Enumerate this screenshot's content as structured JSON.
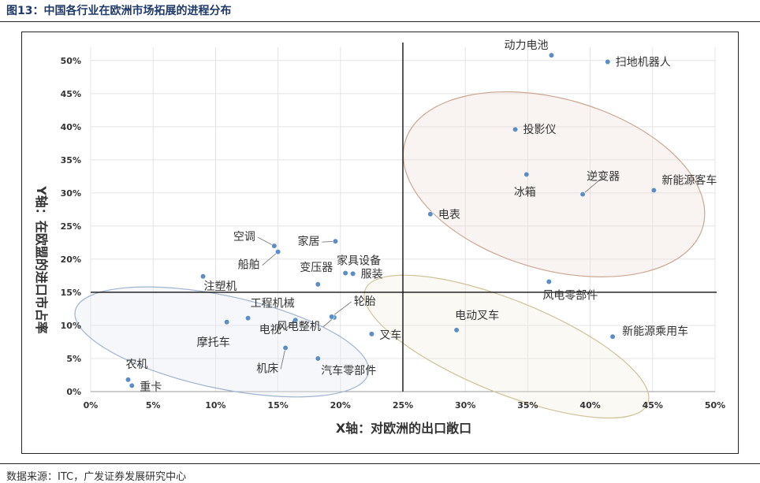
{
  "header": {
    "title": "图13：中国各行业在欧洲市场拓展的进程分布"
  },
  "footer": {
    "source": "数据来源：ITC，广发证券发展研究中心"
  },
  "colors": {
    "point": "#5b8ec7",
    "title": "#1f3a68",
    "ellipse_top_right": "#c9a793",
    "ellipse_bottom_left": "#9fb3cf",
    "ellipse_bottom_right": "#cfc29b"
  },
  "chart_data": {
    "type": "scatter",
    "title": "",
    "xlabel": "X轴：对欧洲的出口敞口",
    "ylabel": "Y轴：在欧盟的进口市占率",
    "xlim": [
      0,
      50
    ],
    "ylim": [
      0,
      52
    ],
    "x_ticks": [
      "0%",
      "5%",
      "10%",
      "15%",
      "20%",
      "25%",
      "30%",
      "35%",
      "40%",
      "45%",
      "50%"
    ],
    "y_ticks": [
      "0%",
      "5%",
      "10%",
      "15%",
      "20%",
      "25%",
      "30%",
      "35%",
      "40%",
      "45%",
      "50%"
    ],
    "x_divider": 25,
    "y_divider": 15,
    "grid": true,
    "points": [
      {
        "label": "动力电池",
        "x": 36.9,
        "y": 50.8
      },
      {
        "label": "扫地机器人",
        "x": 41.4,
        "y": 49.8
      },
      {
        "label": "投影仪",
        "x": 34.0,
        "y": 39.6
      },
      {
        "label": "冰箱",
        "x": 34.9,
        "y": 32.8
      },
      {
        "label": "逆变器",
        "x": 39.4,
        "y": 29.8
      },
      {
        "label": "新能源客车",
        "x": 45.1,
        "y": 30.4
      },
      {
        "label": "电表",
        "x": 27.2,
        "y": 26.8
      },
      {
        "label": "家居",
        "x": 19.6,
        "y": 22.7
      },
      {
        "label": "空调",
        "x": 14.7,
        "y": 22.0
      },
      {
        "label": "船舶",
        "x": 15.0,
        "y": 21.1
      },
      {
        "label": "家具设备",
        "x": 20.4,
        "y": 17.9
      },
      {
        "label": "服装",
        "x": 21.0,
        "y": 17.8
      },
      {
        "label": "变压器",
        "x": 18.2,
        "y": 16.2
      },
      {
        "label": "注塑机",
        "x": 9.0,
        "y": 17.4
      },
      {
        "label": "风电零部件",
        "x": 36.7,
        "y": 16.6
      },
      {
        "label": "工程机械",
        "x": 12.6,
        "y": 11.1
      },
      {
        "label": "摩托车",
        "x": 10.9,
        "y": 10.5
      },
      {
        "label": "电视",
        "x": 16.4,
        "y": 10.8
      },
      {
        "label": "风电整机",
        "x": 19.5,
        "y": 11.2
      },
      {
        "label": "轮胎",
        "x": 19.3,
        "y": 11.3
      },
      {
        "label": "叉车",
        "x": 22.5,
        "y": 8.7
      },
      {
        "label": "机床",
        "x": 15.6,
        "y": 6.6
      },
      {
        "label": "汽车零部件",
        "x": 18.2,
        "y": 5.0
      },
      {
        "label": "农机",
        "x": 3.0,
        "y": 1.8
      },
      {
        "label": "重卡",
        "x": 3.3,
        "y": 0.9
      },
      {
        "label": "电动叉车",
        "x": 29.3,
        "y": 9.3
      },
      {
        "label": "新能源乘用车",
        "x": 41.8,
        "y": 8.3
      }
    ]
  }
}
